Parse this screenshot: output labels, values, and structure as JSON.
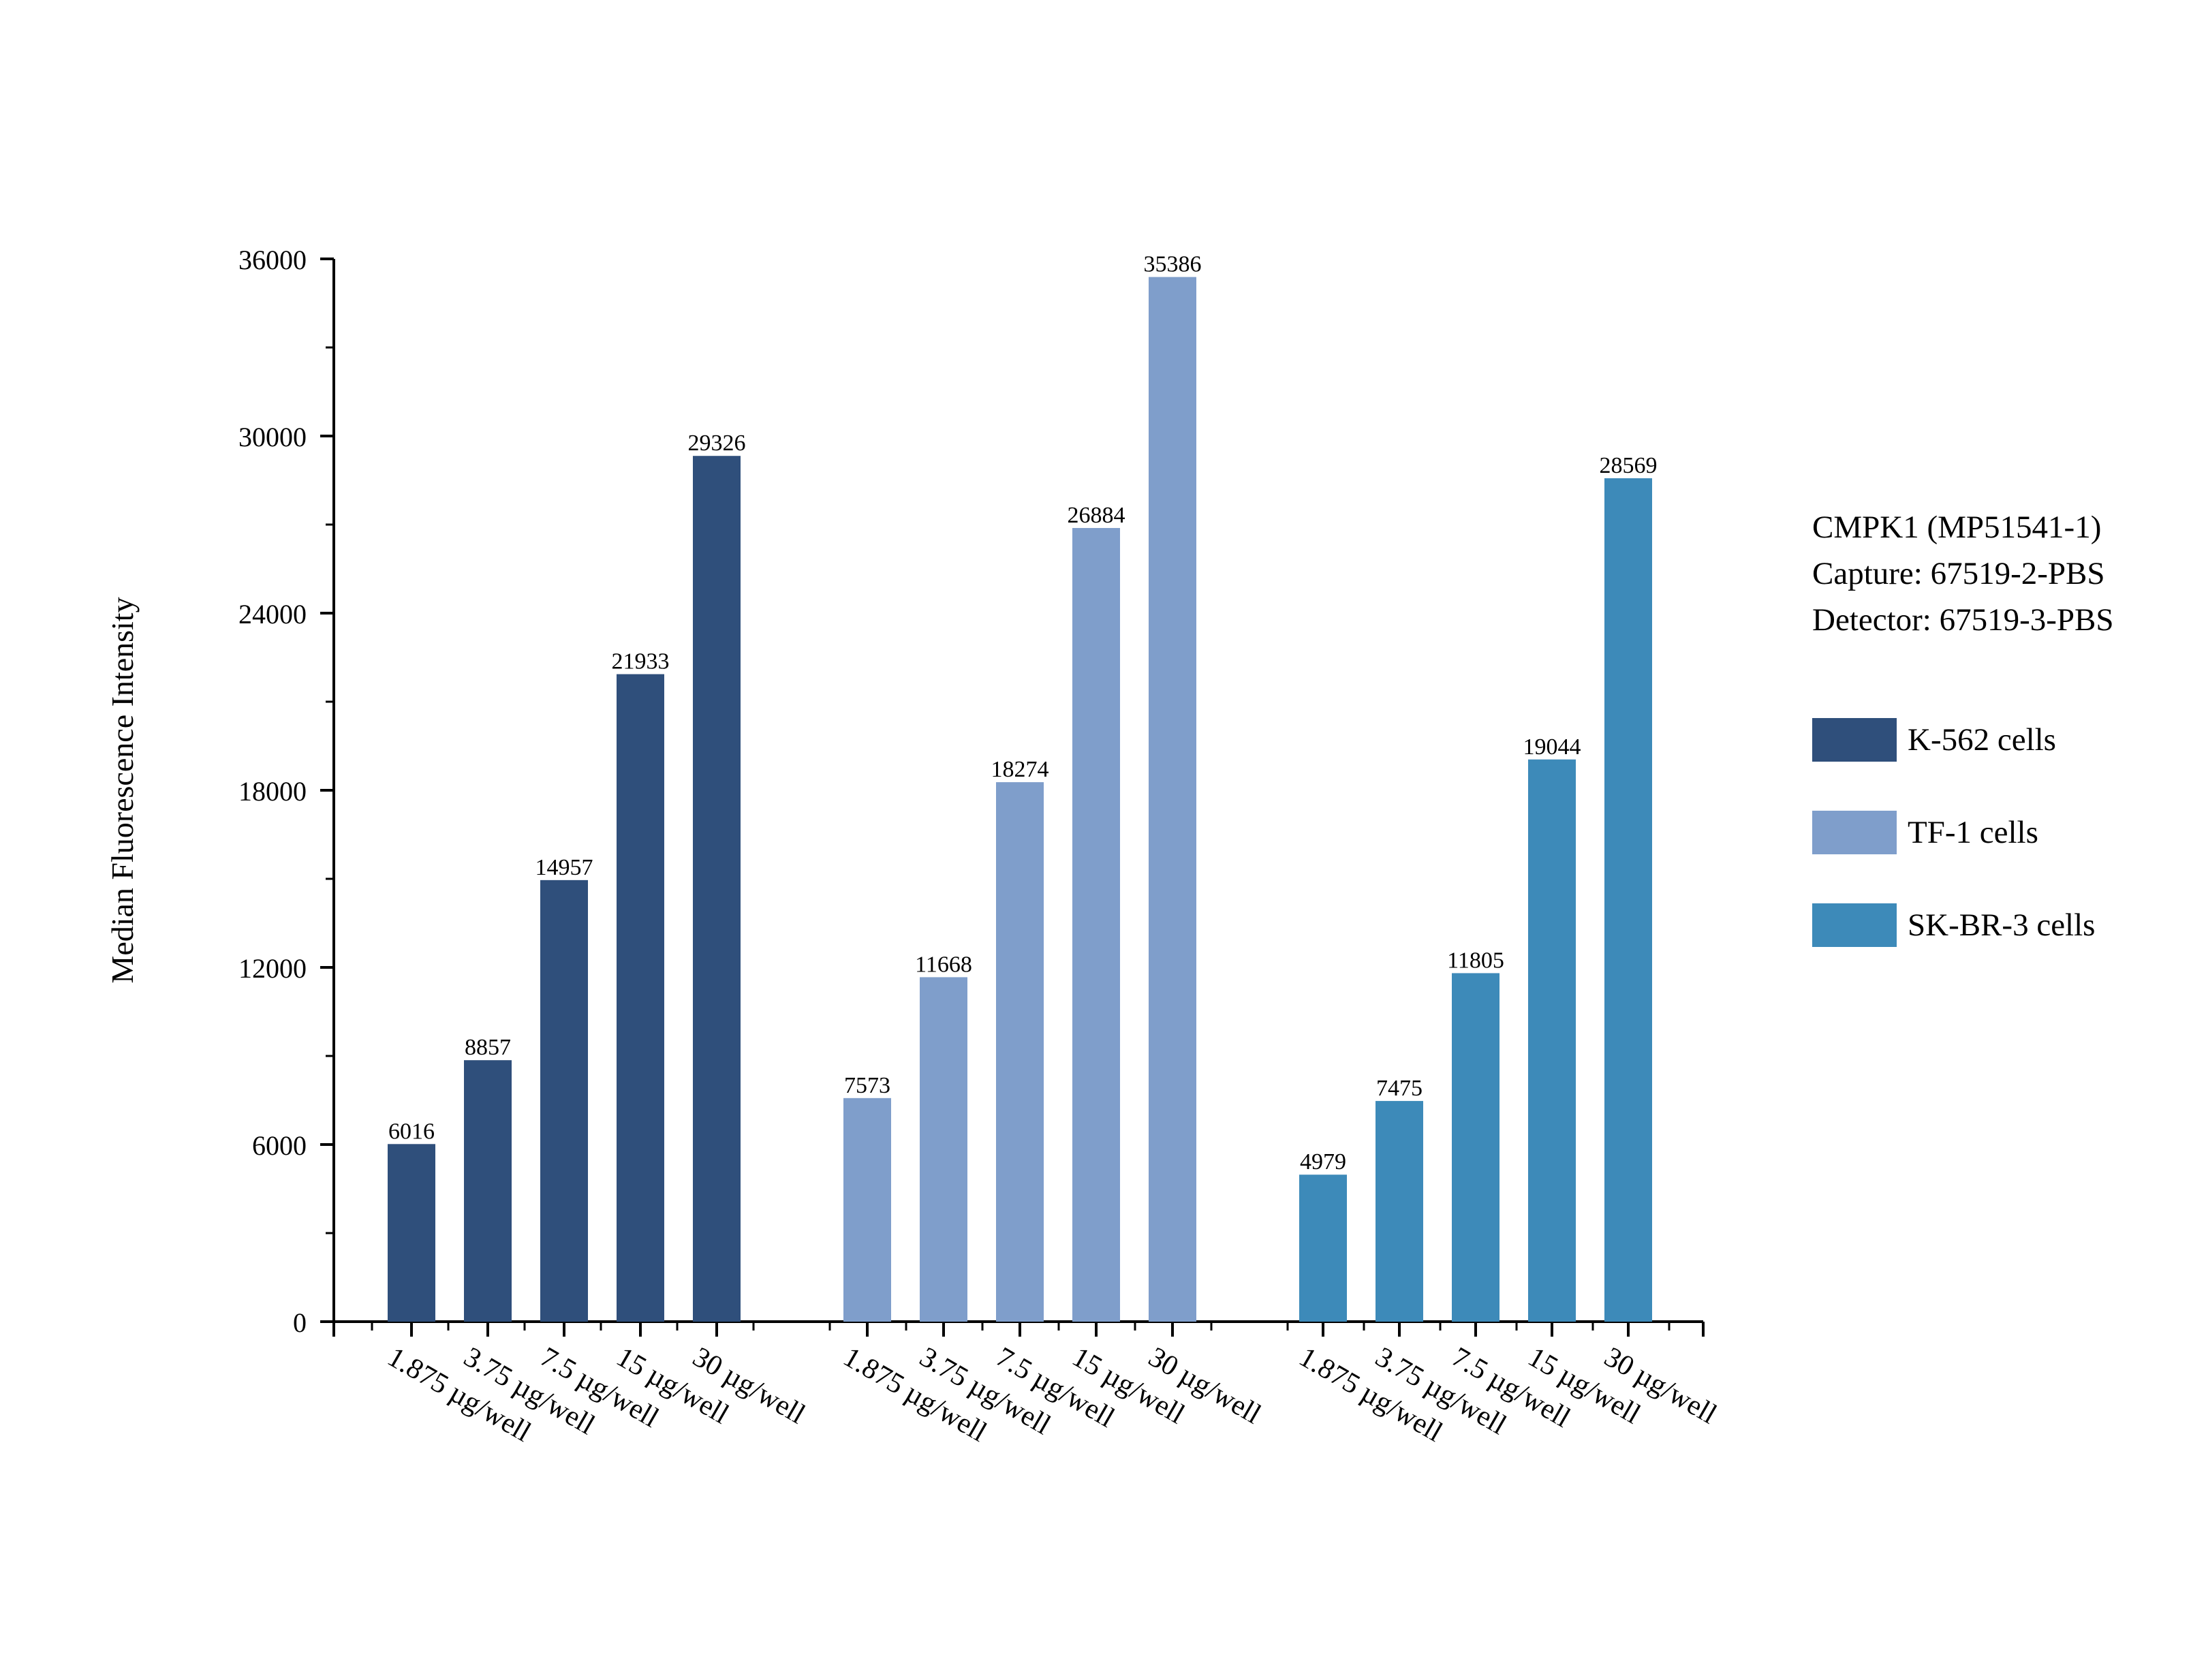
{
  "chart_data": {
    "type": "bar",
    "ylabel": "Median Fluorescence Intensity",
    "ylim": [
      0,
      36000
    ],
    "yticks": [
      0,
      6000,
      12000,
      18000,
      24000,
      30000,
      36000
    ],
    "tick_labels_y": [
      "0",
      "6000",
      "12000",
      "18000",
      "24000",
      "30000",
      "36000"
    ],
    "categories": [
      "1.875 µg/well",
      "3.75 µg/well",
      "7.5 µg/well",
      "15 µg/well",
      "30 µg/well"
    ],
    "series": [
      {
        "name": "K-562 cells",
        "color": "#2f4f7b",
        "values": [
          6016,
          8857,
          14957,
          21933,
          29326
        ]
      },
      {
        "name": "TF-1 cells",
        "color": "#7f9ecb",
        "values": [
          7573,
          11668,
          18274,
          26884,
          35386
        ]
      },
      {
        "name": "SK-BR-3 cells",
        "color": "#3d8ab9",
        "values": [
          4979,
          7475,
          11805,
          19044,
          28569
        ]
      }
    ],
    "data_labels": true,
    "grid": false,
    "legend_position": "right"
  },
  "legend": {
    "title_lines": [
      "CMPK1 (MP51541-1)",
      "Capture: 67519-2-PBS",
      "Detector: 67519-3-PBS"
    ]
  }
}
